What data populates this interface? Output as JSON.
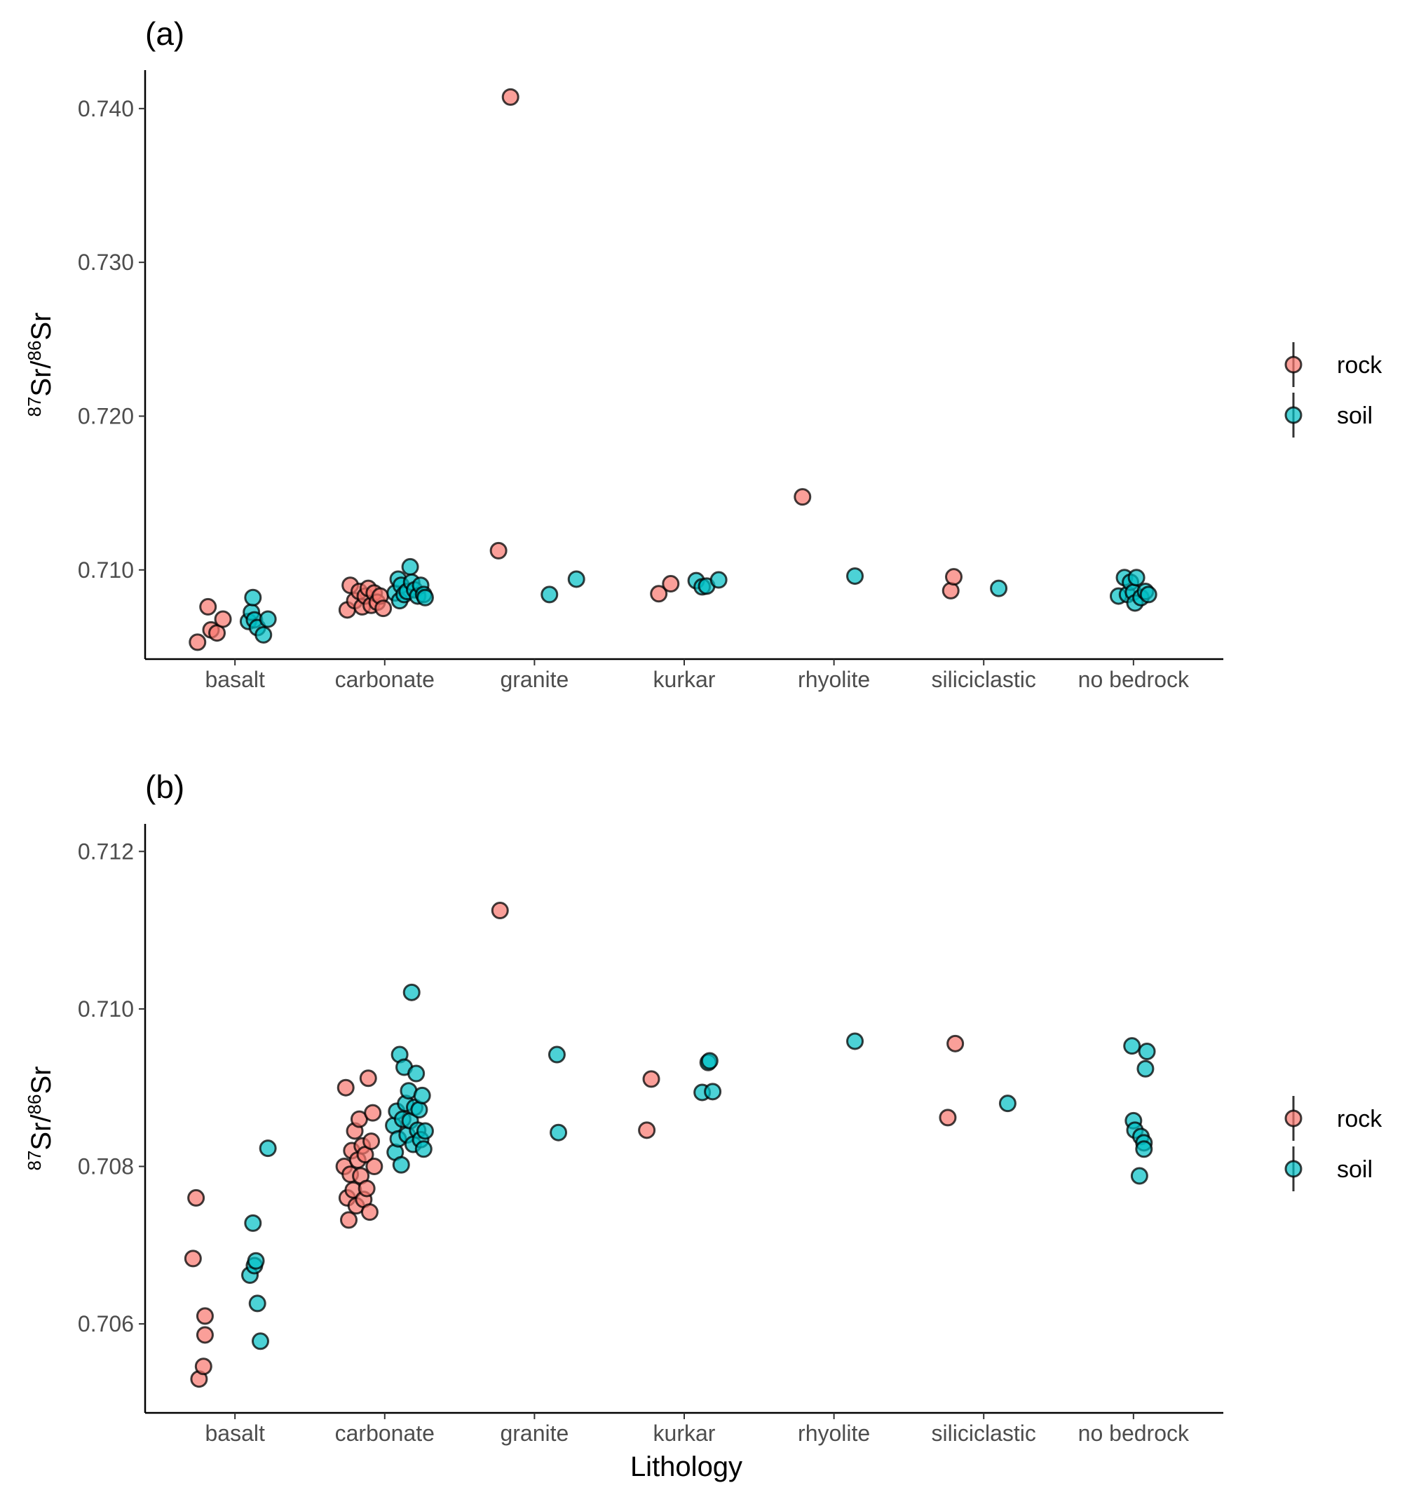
{
  "chart_data": [
    {
      "type": "scatter",
      "title": "(a)",
      "xlabel": "",
      "ylabel": "87Sr/86Sr",
      "categories": [
        "basalt",
        "carbonate",
        "granite",
        "kurkar",
        "rhyolite",
        "siliciclastic",
        "no bedrock"
      ],
      "ylim": [
        0.7042,
        0.7425
      ],
      "yticks": [
        0.71,
        0.72,
        0.73,
        0.74
      ],
      "ytick_labels": [
        "0.710",
        "0.720",
        "0.730",
        "0.740"
      ],
      "legend_position": "right",
      "series": [
        {
          "name": "rock",
          "color": "#F8766D",
          "points": [
            {
              "x": "basalt",
              "jitter": -0.25,
              "y": 0.7053
            },
            {
              "x": "basalt",
              "jitter": -0.18,
              "y": 0.7076
            },
            {
              "x": "basalt",
              "jitter": -0.16,
              "y": 0.7061
            },
            {
              "x": "basalt",
              "jitter": -0.12,
              "y": 0.7059
            },
            {
              "x": "basalt",
              "jitter": -0.08,
              "y": 0.7068
            },
            {
              "x": "carbonate",
              "jitter": -0.25,
              "y": 0.7074
            },
            {
              "x": "carbonate",
              "jitter": -0.23,
              "y": 0.709
            },
            {
              "x": "carbonate",
              "jitter": -0.2,
              "y": 0.708
            },
            {
              "x": "carbonate",
              "jitter": -0.17,
              "y": 0.7086
            },
            {
              "x": "carbonate",
              "jitter": -0.15,
              "y": 0.7076
            },
            {
              "x": "carbonate",
              "jitter": -0.13,
              "y": 0.7083
            },
            {
              "x": "carbonate",
              "jitter": -0.11,
              "y": 0.7088
            },
            {
              "x": "carbonate",
              "jitter": -0.09,
              "y": 0.7077
            },
            {
              "x": "carbonate",
              "jitter": -0.07,
              "y": 0.7085
            },
            {
              "x": "carbonate",
              "jitter": -0.05,
              "y": 0.7079
            },
            {
              "x": "carbonate",
              "jitter": -0.03,
              "y": 0.7083
            },
            {
              "x": "carbonate",
              "jitter": -0.01,
              "y": 0.7075
            },
            {
              "x": "granite",
              "jitter": -0.24,
              "y": 0.71125
            },
            {
              "x": "granite",
              "jitter": -0.16,
              "y": 0.74075
            },
            {
              "x": "kurkar",
              "jitter": -0.17,
              "y": 0.70845
            },
            {
              "x": "kurkar",
              "jitter": -0.09,
              "y": 0.7091
            },
            {
              "x": "rhyolite",
              "jitter": -0.21,
              "y": 0.71475
            },
            {
              "x": "siliciclastic",
              "jitter": -0.22,
              "y": 0.70865
            },
            {
              "x": "siliciclastic",
              "jitter": -0.2,
              "y": 0.70955
            }
          ]
        },
        {
          "name": "soil",
          "color": "#00BFC4",
          "points": [
            {
              "x": "basalt",
              "jitter": 0.09,
              "y": 0.70665
            },
            {
              "x": "basalt",
              "jitter": 0.11,
              "y": 0.70725
            },
            {
              "x": "basalt",
              "jitter": 0.12,
              "y": 0.7082
            },
            {
              "x": "basalt",
              "jitter": 0.13,
              "y": 0.70675
            },
            {
              "x": "basalt",
              "jitter": 0.15,
              "y": 0.70625
            },
            {
              "x": "basalt",
              "jitter": 0.19,
              "y": 0.70578
            },
            {
              "x": "basalt",
              "jitter": 0.22,
              "y": 0.7068
            },
            {
              "x": "carbonate",
              "jitter": 0.07,
              "y": 0.7085
            },
            {
              "x": "carbonate",
              "jitter": 0.09,
              "y": 0.7094
            },
            {
              "x": "carbonate",
              "jitter": 0.1,
              "y": 0.708
            },
            {
              "x": "carbonate",
              "jitter": 0.11,
              "y": 0.709
            },
            {
              "x": "carbonate",
              "jitter": 0.13,
              "y": 0.7084
            },
            {
              "x": "carbonate",
              "jitter": 0.15,
              "y": 0.7086
            },
            {
              "x": "carbonate",
              "jitter": 0.17,
              "y": 0.7102
            },
            {
              "x": "carbonate",
              "jitter": 0.18,
              "y": 0.7092
            },
            {
              "x": "carbonate",
              "jitter": 0.2,
              "y": 0.7087
            },
            {
              "x": "carbonate",
              "jitter": 0.22,
              "y": 0.7083
            },
            {
              "x": "carbonate",
              "jitter": 0.24,
              "y": 0.709
            },
            {
              "x": "carbonate",
              "jitter": 0.26,
              "y": 0.7084
            },
            {
              "x": "carbonate",
              "jitter": 0.27,
              "y": 0.7082
            },
            {
              "x": "granite",
              "jitter": 0.1,
              "y": 0.7084
            },
            {
              "x": "granite",
              "jitter": 0.28,
              "y": 0.7094
            },
            {
              "x": "kurkar",
              "jitter": 0.08,
              "y": 0.7093
            },
            {
              "x": "kurkar",
              "jitter": 0.12,
              "y": 0.7089
            },
            {
              "x": "kurkar",
              "jitter": 0.15,
              "y": 0.70895
            },
            {
              "x": "kurkar",
              "jitter": 0.23,
              "y": 0.70935
            },
            {
              "x": "rhyolite",
              "jitter": 0.14,
              "y": 0.7096
            },
            {
              "x": "siliciclastic",
              "jitter": 0.1,
              "y": 0.7088
            },
            {
              "x": "no bedrock",
              "jitter": -0.1,
              "y": 0.7083
            },
            {
              "x": "no bedrock",
              "jitter": -0.06,
              "y": 0.7095
            },
            {
              "x": "no bedrock",
              "jitter": -0.04,
              "y": 0.7084
            },
            {
              "x": "no bedrock",
              "jitter": -0.02,
              "y": 0.7092
            },
            {
              "x": "no bedrock",
              "jitter": 0.0,
              "y": 0.70855
            },
            {
              "x": "no bedrock",
              "jitter": 0.01,
              "y": 0.70785
            },
            {
              "x": "no bedrock",
              "jitter": 0.02,
              "y": 0.7095
            },
            {
              "x": "no bedrock",
              "jitter": 0.05,
              "y": 0.7082
            },
            {
              "x": "no bedrock",
              "jitter": 0.08,
              "y": 0.7086
            },
            {
              "x": "no bedrock",
              "jitter": 0.1,
              "y": 0.7084
            }
          ]
        }
      ]
    },
    {
      "type": "scatter",
      "title": "(b)",
      "xlabel": "Lithology",
      "ylabel": "87Sr/86Sr",
      "categories": [
        "basalt",
        "carbonate",
        "granite",
        "kurkar",
        "rhyolite",
        "siliciclastic",
        "no bedrock"
      ],
      "ylim": [
        0.70487,
        0.71235
      ],
      "yticks": [
        0.706,
        0.708,
        0.71,
        0.712
      ],
      "ytick_labels": [
        "0.706",
        "0.708",
        "0.710",
        "0.712"
      ],
      "legend_position": "right",
      "series": [
        {
          "name": "rock",
          "color": "#F8766D",
          "points": [
            {
              "x": "basalt",
              "jitter": -0.28,
              "y": 0.70683
            },
            {
              "x": "basalt",
              "jitter": -0.26,
              "y": 0.7076
            },
            {
              "x": "basalt",
              "jitter": -0.24,
              "y": 0.7053
            },
            {
              "x": "basalt",
              "jitter": -0.21,
              "y": 0.70546
            },
            {
              "x": "basalt",
              "jitter": -0.2,
              "y": 0.7061
            },
            {
              "x": "basalt",
              "jitter": -0.2,
              "y": 0.70586
            },
            {
              "x": "carbonate",
              "jitter": -0.27,
              "y": 0.708
            },
            {
              "x": "carbonate",
              "jitter": -0.26,
              "y": 0.709
            },
            {
              "x": "carbonate",
              "jitter": -0.25,
              "y": 0.7076
            },
            {
              "x": "carbonate",
              "jitter": -0.24,
              "y": 0.70732
            },
            {
              "x": "carbonate",
              "jitter": -0.23,
              "y": 0.7079
            },
            {
              "x": "carbonate",
              "jitter": -0.22,
              "y": 0.7082
            },
            {
              "x": "carbonate",
              "jitter": -0.21,
              "y": 0.7077
            },
            {
              "x": "carbonate",
              "jitter": -0.2,
              "y": 0.70845
            },
            {
              "x": "carbonate",
              "jitter": -0.19,
              "y": 0.7075
            },
            {
              "x": "carbonate",
              "jitter": -0.18,
              "y": 0.70808
            },
            {
              "x": "carbonate",
              "jitter": -0.17,
              "y": 0.7086
            },
            {
              "x": "carbonate",
              "jitter": -0.16,
              "y": 0.70788
            },
            {
              "x": "carbonate",
              "jitter": -0.15,
              "y": 0.70826
            },
            {
              "x": "carbonate",
              "jitter": -0.14,
              "y": 0.70758
            },
            {
              "x": "carbonate",
              "jitter": -0.13,
              "y": 0.70815
            },
            {
              "x": "carbonate",
              "jitter": -0.12,
              "y": 0.70772
            },
            {
              "x": "carbonate",
              "jitter": -0.11,
              "y": 0.70912
            },
            {
              "x": "carbonate",
              "jitter": -0.1,
              "y": 0.70742
            },
            {
              "x": "carbonate",
              "jitter": -0.09,
              "y": 0.70832
            },
            {
              "x": "carbonate",
              "jitter": -0.08,
              "y": 0.70868
            },
            {
              "x": "carbonate",
              "jitter": -0.07,
              "y": 0.708
            },
            {
              "x": "granite",
              "jitter": -0.23,
              "y": 0.71125
            },
            {
              "x": "kurkar",
              "jitter": -0.25,
              "y": 0.70846
            },
            {
              "x": "kurkar",
              "jitter": -0.22,
              "y": 0.70911
            },
            {
              "x": "siliciclastic",
              "jitter": -0.24,
              "y": 0.70862
            },
            {
              "x": "siliciclastic",
              "jitter": -0.19,
              "y": 0.70956
            }
          ]
        },
        {
          "name": "soil",
          "color": "#00BFC4",
          "points": [
            {
              "x": "basalt",
              "jitter": 0.1,
              "y": 0.70662
            },
            {
              "x": "basalt",
              "jitter": 0.12,
              "y": 0.70728
            },
            {
              "x": "basalt",
              "jitter": 0.13,
              "y": 0.70674
            },
            {
              "x": "basalt",
              "jitter": 0.14,
              "y": 0.7068
            },
            {
              "x": "basalt",
              "jitter": 0.15,
              "y": 0.70626
            },
            {
              "x": "basalt",
              "jitter": 0.17,
              "y": 0.70578
            },
            {
              "x": "basalt",
              "jitter": 0.22,
              "y": 0.70823
            },
            {
              "x": "carbonate",
              "jitter": 0.06,
              "y": 0.70852
            },
            {
              "x": "carbonate",
              "jitter": 0.07,
              "y": 0.70818
            },
            {
              "x": "carbonate",
              "jitter": 0.08,
              "y": 0.7087
            },
            {
              "x": "carbonate",
              "jitter": 0.09,
              "y": 0.70835
            },
            {
              "x": "carbonate",
              "jitter": 0.1,
              "y": 0.70942
            },
            {
              "x": "carbonate",
              "jitter": 0.11,
              "y": 0.70802
            },
            {
              "x": "carbonate",
              "jitter": 0.12,
              "y": 0.7086
            },
            {
              "x": "carbonate",
              "jitter": 0.13,
              "y": 0.70926
            },
            {
              "x": "carbonate",
              "jitter": 0.14,
              "y": 0.7088
            },
            {
              "x": "carbonate",
              "jitter": 0.15,
              "y": 0.7084
            },
            {
              "x": "carbonate",
              "jitter": 0.16,
              "y": 0.70896
            },
            {
              "x": "carbonate",
              "jitter": 0.17,
              "y": 0.70858
            },
            {
              "x": "carbonate",
              "jitter": 0.18,
              "y": 0.71021
            },
            {
              "x": "carbonate",
              "jitter": 0.19,
              "y": 0.70828
            },
            {
              "x": "carbonate",
              "jitter": 0.2,
              "y": 0.70875
            },
            {
              "x": "carbonate",
              "jitter": 0.21,
              "y": 0.70918
            },
            {
              "x": "carbonate",
              "jitter": 0.22,
              "y": 0.70846
            },
            {
              "x": "carbonate",
              "jitter": 0.23,
              "y": 0.70872
            },
            {
              "x": "carbonate",
              "jitter": 0.24,
              "y": 0.70834
            },
            {
              "x": "carbonate",
              "jitter": 0.25,
              "y": 0.7089
            },
            {
              "x": "carbonate",
              "jitter": 0.26,
              "y": 0.70822
            },
            {
              "x": "carbonate",
              "jitter": 0.27,
              "y": 0.70845
            },
            {
              "x": "granite",
              "jitter": 0.16,
              "y": 0.70843
            },
            {
              "x": "granite",
              "jitter": 0.15,
              "y": 0.70942
            },
            {
              "x": "kurkar",
              "jitter": 0.12,
              "y": 0.70894
            },
            {
              "x": "kurkar",
              "jitter": 0.16,
              "y": 0.70932
            },
            {
              "x": "kurkar",
              "jitter": 0.17,
              "y": 0.70934
            },
            {
              "x": "kurkar",
              "jitter": 0.19,
              "y": 0.70895
            },
            {
              "x": "rhyolite",
              "jitter": 0.14,
              "y": 0.70959
            },
            {
              "x": "siliciclastic",
              "jitter": 0.16,
              "y": 0.7088
            },
            {
              "x": "no bedrock",
              "jitter": -0.01,
              "y": 0.70953
            },
            {
              "x": "no bedrock",
              "jitter": 0.0,
              "y": 0.70858
            },
            {
              "x": "no bedrock",
              "jitter": 0.01,
              "y": 0.70846
            },
            {
              "x": "no bedrock",
              "jitter": 0.04,
              "y": 0.70788
            },
            {
              "x": "no bedrock",
              "jitter": 0.05,
              "y": 0.70838
            },
            {
              "x": "no bedrock",
              "jitter": 0.07,
              "y": 0.7083
            },
            {
              "x": "no bedrock",
              "jitter": 0.07,
              "y": 0.70822
            },
            {
              "x": "no bedrock",
              "jitter": 0.09,
              "y": 0.70946
            },
            {
              "x": "no bedrock",
              "jitter": 0.08,
              "y": 0.70924
            }
          ]
        }
      ]
    }
  ]
}
